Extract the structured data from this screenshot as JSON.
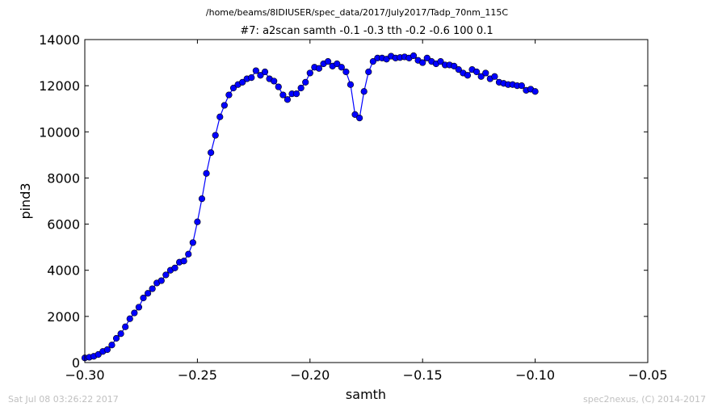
{
  "chart_data": {
    "type": "line",
    "suptitle": "/home/beams/8IDIUSER/spec_data/2017/July2017/Tadp_70nm_115C",
    "title": "#7: a2scan  samth -0.1 -0.3  tth -0.2 -0.6  100 0.1",
    "xlabel": "samth",
    "ylabel": "pind3",
    "xlim": [
      -0.3,
      -0.05
    ],
    "ylim": [
      0,
      14000
    ],
    "xticks": [
      -0.3,
      -0.25,
      -0.2,
      -0.15,
      -0.1,
      -0.05
    ],
    "xtick_labels": [
      "−0.30",
      "−0.25",
      "−0.20",
      "−0.15",
      "−0.10",
      "−0.05"
    ],
    "yticks": [
      0,
      2000,
      4000,
      6000,
      8000,
      10000,
      12000,
      14000
    ],
    "ytick_labels": [
      "0",
      "2000",
      "4000",
      "6000",
      "8000",
      "10000",
      "12000",
      "14000"
    ],
    "grid": false,
    "color": "#0000ff",
    "marker": "circle",
    "series": [
      {
        "x": [
          -0.3,
          -0.298,
          -0.296,
          -0.294,
          -0.292,
          -0.29,
          -0.288,
          -0.286,
          -0.284,
          -0.282,
          -0.28,
          -0.278,
          -0.276,
          -0.274,
          -0.272,
          -0.27,
          -0.268,
          -0.266,
          -0.264,
          -0.262,
          -0.26,
          -0.258,
          -0.256,
          -0.254,
          -0.252,
          -0.25,
          -0.248,
          -0.246,
          -0.244,
          -0.242,
          -0.24,
          -0.238,
          -0.236,
          -0.234,
          -0.232,
          -0.23,
          -0.228,
          -0.226,
          -0.224,
          -0.222,
          -0.22,
          -0.218,
          -0.216,
          -0.214,
          -0.212,
          -0.21,
          -0.208,
          -0.206,
          -0.204,
          -0.202,
          -0.2,
          -0.198,
          -0.196,
          -0.194,
          -0.192,
          -0.19,
          -0.188,
          -0.186,
          -0.184,
          -0.182,
          -0.18,
          -0.178,
          -0.176,
          -0.174,
          -0.172,
          -0.17,
          -0.168,
          -0.166,
          -0.164,
          -0.162,
          -0.16,
          -0.158,
          -0.156,
          -0.154,
          -0.152,
          -0.15,
          -0.148,
          -0.146,
          -0.144,
          -0.142,
          -0.14,
          -0.138,
          -0.136,
          -0.134,
          -0.132,
          -0.13,
          -0.128,
          -0.126,
          -0.124,
          -0.122,
          -0.12,
          -0.118,
          -0.116,
          -0.114,
          -0.112,
          -0.11,
          -0.108,
          -0.106,
          -0.104,
          -0.102,
          -0.1
        ],
        "y": [
          200,
          230,
          270,
          350,
          480,
          560,
          760,
          1050,
          1250,
          1550,
          1900,
          2150,
          2400,
          2800,
          3000,
          3200,
          3450,
          3550,
          3800,
          4000,
          4100,
          4350,
          4400,
          4700,
          5200,
          6100,
          7100,
          8200,
          9100,
          9850,
          10650,
          11150,
          11600,
          11900,
          12050,
          12150,
          12300,
          12350,
          12650,
          12450,
          12600,
          12300,
          12200,
          11950,
          11600,
          11400,
          11650,
          11650,
          11900,
          12150,
          12550,
          12800,
          12750,
          12950,
          13050,
          12850,
          12950,
          12800,
          12600,
          12050,
          10750,
          10600,
          11750,
          12600,
          13050,
          13200,
          13200,
          13150,
          13280,
          13200,
          13220,
          13250,
          13200,
          13300,
          13100,
          13000,
          13200,
          13050,
          12950,
          13050,
          12900,
          12900,
          12850,
          12700,
          12550,
          12450,
          12700,
          12600,
          12400,
          12550,
          12300,
          12400,
          12150,
          12100,
          12050,
          12050,
          12000,
          12000,
          11800,
          11850,
          11750
        ]
      }
    ]
  },
  "footer": {
    "left": "Sat Jul 08 03:26:22 2017",
    "right": "spec2nexus, (C) 2014-2017"
  }
}
